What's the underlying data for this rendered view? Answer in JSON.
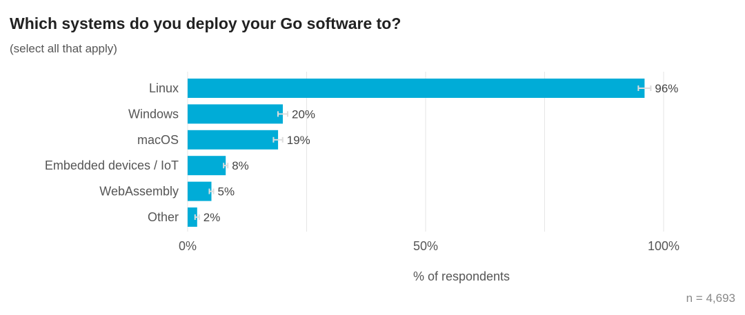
{
  "title": "Which systems do you deploy your Go software to?",
  "subtitle": "(select all that apply)",
  "sample_size": "n = 4,693",
  "colors": {
    "bar": "#00acd7",
    "grid": "#e5e5e5",
    "error_bar": "#dddddd"
  },
  "chart_data": {
    "type": "bar",
    "orientation": "horizontal",
    "title": "Which systems do you deploy your Go software to?",
    "subtitle": "(select all that apply)",
    "categories": [
      "Linux",
      "Windows",
      "macOS",
      "Embedded devices / IoT",
      "WebAssembly",
      "Other"
    ],
    "values": [
      96,
      20,
      19,
      8,
      5,
      2
    ],
    "value_labels": [
      "96%",
      "20%",
      "19%",
      "8%",
      "5%",
      "2%"
    ],
    "xlabel": "% of respondents",
    "ylabel": "",
    "xlim": [
      0,
      100
    ],
    "xticks": [
      0,
      50,
      100
    ],
    "xtick_labels": [
      "0%",
      "50%",
      "100%"
    ],
    "minor_gridlines": [
      25,
      75
    ],
    "error_bars": true,
    "grid": true,
    "legend": "none"
  }
}
